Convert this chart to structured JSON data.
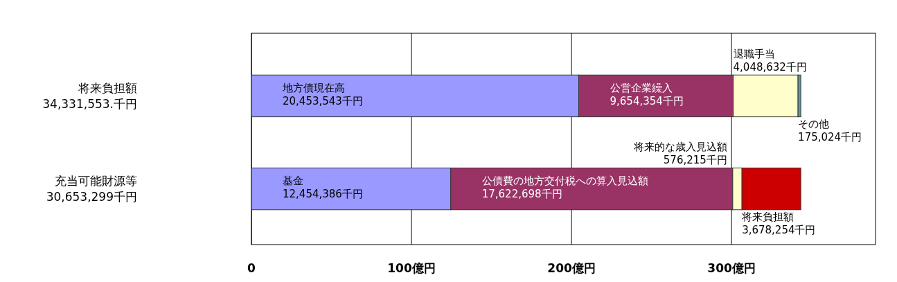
{
  "chart_data": {
    "type": "bar",
    "orientation": "horizontal",
    "stacked": true,
    "categories": [
      "将来負担額\n34,331,553.千円",
      "充当可能財源等\n30,653,299千円"
    ],
    "series": [
      {
        "name": "地方債現在高",
        "color": "#9999ff",
        "values": [
          204.53543,
          null
        ]
      },
      {
        "name": "公営企業繰入",
        "color": "#993366",
        "values": [
          96.54354,
          null
        ]
      },
      {
        "name": "退職手当",
        "color": "#ffffcc",
        "values": [
          40.48632,
          null
        ]
      },
      {
        "name": "その他",
        "color": "#669999",
        "values": [
          1.75024,
          null
        ]
      },
      {
        "name": "基金",
        "color": "#9999ff",
        "values": [
          null,
          124.54386
        ]
      },
      {
        "name": "公債費の地方交付税への算入見込額",
        "color": "#993366",
        "values": [
          null,
          176.22698
        ]
      },
      {
        "name": "将来的な歳入見込額",
        "color": "#ffffcc",
        "values": [
          null,
          5.76215
        ]
      },
      {
        "name": "将来負担額",
        "color": "#cc0000",
        "values": [
          null,
          36.78254
        ]
      }
    ],
    "annotations": [
      "20,453,543千円",
      "9,654,354千円",
      "4,048,632千円",
      "175,024千円",
      "12,454,386千円",
      "17,622,698千円",
      "576,215千円",
      "3,678,254千円"
    ],
    "xlim": [
      0,
      390
    ],
    "xticks": [
      0,
      {
        "value": 100,
        "label": "100億円"
      },
      {
        "value": 200,
        "label": "200億円"
      },
      {
        "value": 300,
        "label": "300億円"
      }
    ],
    "grid": "x"
  }
}
